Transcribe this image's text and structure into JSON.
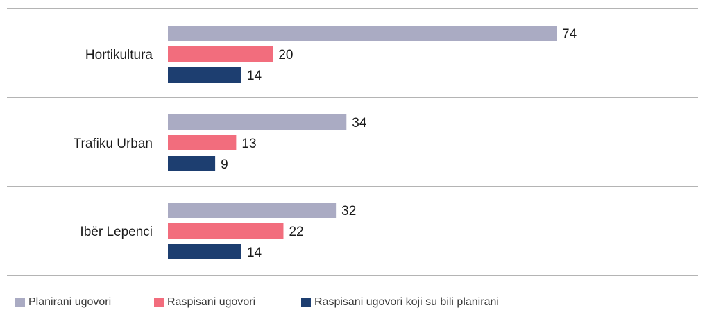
{
  "chart_data": {
    "type": "bar",
    "orientation": "horizontal",
    "categories": [
      "Hortikultura",
      "Trafiku Urban",
      "Ibër Lepenci"
    ],
    "series": [
      {
        "name": "Planirani ugovori",
        "values": [
          74,
          34,
          32
        ],
        "color": "#aaabc3"
      },
      {
        "name": "Raspisani ugovori",
        "values": [
          20,
          13,
          22
        ],
        "color": "#f26d7d"
      },
      {
        "name": "Raspisani ugovori koji su bili planirani",
        "values": [
          14,
          9,
          14
        ],
        "color": "#1d3e70"
      }
    ],
    "title": "",
    "xlabel": "",
    "ylabel": "",
    "xlim": [
      0,
      74
    ],
    "grid": false,
    "legend_position": "bottom-left"
  }
}
